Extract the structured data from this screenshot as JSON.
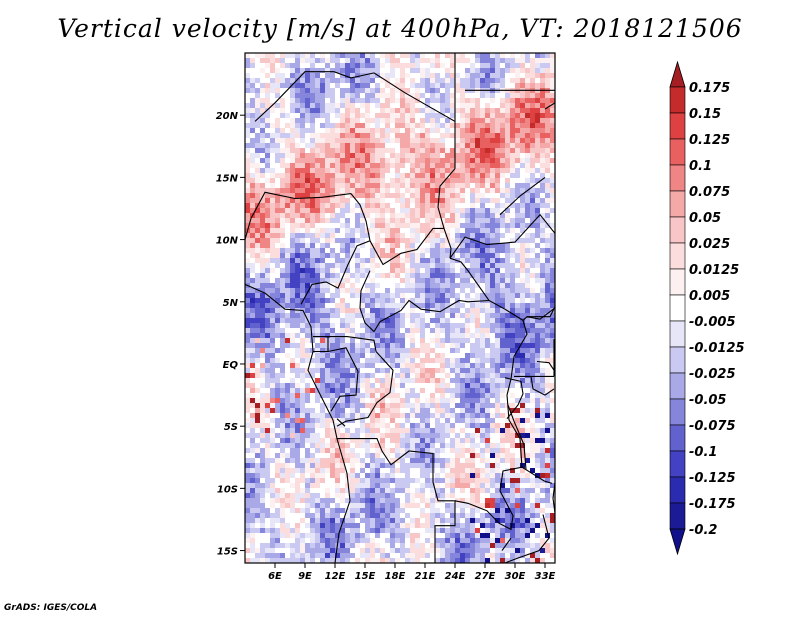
{
  "title": "Vertical velocity [m/s] at 400hPa, VT: 2018121506",
  "credit": "GrADS: IGES/COLA",
  "map": {
    "lon_range": [
      3,
      34
    ],
    "lat_range": [
      -16,
      25
    ],
    "lat_ticks": [
      {
        "value": 20,
        "label": "20N"
      },
      {
        "value": 15,
        "label": "15N"
      },
      {
        "value": 10,
        "label": "10N"
      },
      {
        "value": 5,
        "label": "5N"
      },
      {
        "value": 0,
        "label": "EQ"
      },
      {
        "value": -5,
        "label": "5S"
      },
      {
        "value": -10,
        "label": "10S"
      },
      {
        "value": -15,
        "label": "15S"
      }
    ],
    "lon_ticks": [
      {
        "value": 6,
        "label": "6E"
      },
      {
        "value": 9,
        "label": "9E"
      },
      {
        "value": 12,
        "label": "12E"
      },
      {
        "value": 15,
        "label": "15E"
      },
      {
        "value": 18,
        "label": "18E"
      },
      {
        "value": 21,
        "label": "21E"
      },
      {
        "value": 24,
        "label": "24E"
      },
      {
        "value": 27,
        "label": "27E"
      },
      {
        "value": 30,
        "label": "30E"
      },
      {
        "value": 33,
        "label": "33E"
      }
    ]
  },
  "colorbar": {
    "labels": [
      "0.175",
      "0.15",
      "0.125",
      "0.1",
      "0.075",
      "0.05",
      "0.025",
      "0.0125",
      "0.005",
      "-0.005",
      "-0.0125",
      "-0.025",
      "-0.05",
      "-0.075",
      "-0.1",
      "-0.125",
      "-0.175",
      "-0.2"
    ],
    "colors": [
      "#a41e23",
      "#c42b2b",
      "#dd4141",
      "#e96060",
      "#ef8585",
      "#f4a8a8",
      "#f8c6c6",
      "#fbdddd",
      "#fdf0f0",
      "#ffffff",
      "#e6e6f8",
      "#c9c9f1",
      "#a9a9e8",
      "#8585dc",
      "#6262cf",
      "#4242c2",
      "#2b2bb0",
      "#1b1b96",
      "#10108a"
    ],
    "top_arrow_color": "#a41e23",
    "bottom_arrow_color": "#10108a"
  }
}
